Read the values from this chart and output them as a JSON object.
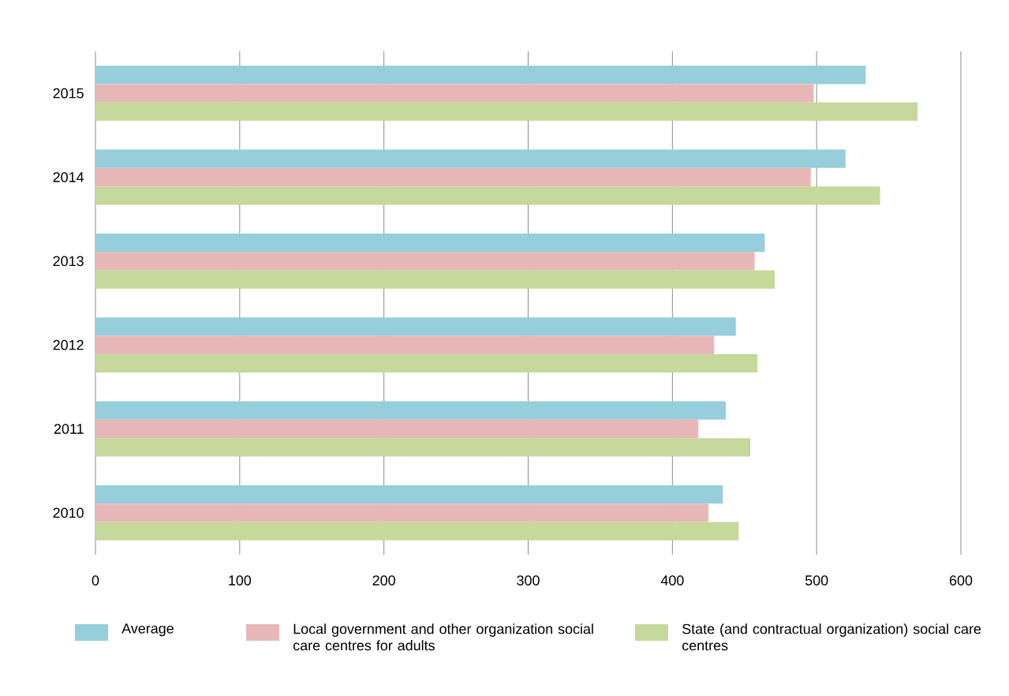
{
  "chart_data": {
    "type": "bar",
    "orientation": "horizontal",
    "categories": [
      "2015",
      "2014",
      "2013",
      "2012",
      "2011",
      "2010"
    ],
    "series": [
      {
        "name": "Average",
        "color": "#96cedb",
        "values": [
          534,
          520,
          464,
          444,
          437,
          435
        ]
      },
      {
        "name": "Local government and other organization social care centres for adults",
        "color": "#e8b8b8",
        "values": [
          498,
          496,
          457,
          429,
          418,
          425
        ]
      },
      {
        "name": "State (and contractual organization) social care centres",
        "color": "#c6d89c",
        "values": [
          570,
          544,
          471,
          459,
          454,
          446
        ]
      }
    ],
    "xlim": [
      0,
      600
    ],
    "xticks": [
      0,
      100,
      200,
      300,
      400,
      500,
      600
    ],
    "grid": "x",
    "legend": "bottom"
  }
}
